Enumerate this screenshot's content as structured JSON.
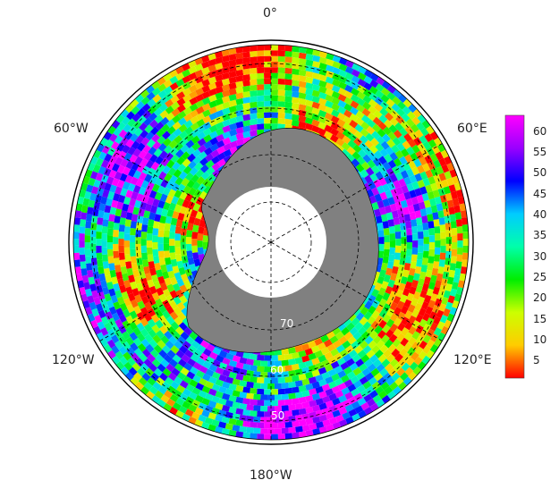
{
  "map": {
    "projection": "south-polar-stereographic",
    "longitude_labels": {
      "top": "0°",
      "upper_left": "60°W",
      "upper_right": "60°E",
      "lower_left": "120°W",
      "lower_right": "120°E",
      "bottom": "180°W"
    },
    "latitude_labels": [
      "70",
      "60",
      "50"
    ],
    "colors": {
      "land": "#808080",
      "ice_hole": "#ffffff",
      "grid": "#000000"
    }
  },
  "colorbar": {
    "tick_labels": [
      "5",
      "10",
      "15",
      "20",
      "25",
      "30",
      "35",
      "40",
      "45",
      "50",
      "55",
      "60"
    ],
    "colormap": [
      "#ff0000",
      "#ffcc00",
      "#ccff00",
      "#00ee00",
      "#00ffaa",
      "#00ccff",
      "#0000ff",
      "#9900ff",
      "#ff00ff"
    ],
    "min": 1,
    "max": 64
  }
}
